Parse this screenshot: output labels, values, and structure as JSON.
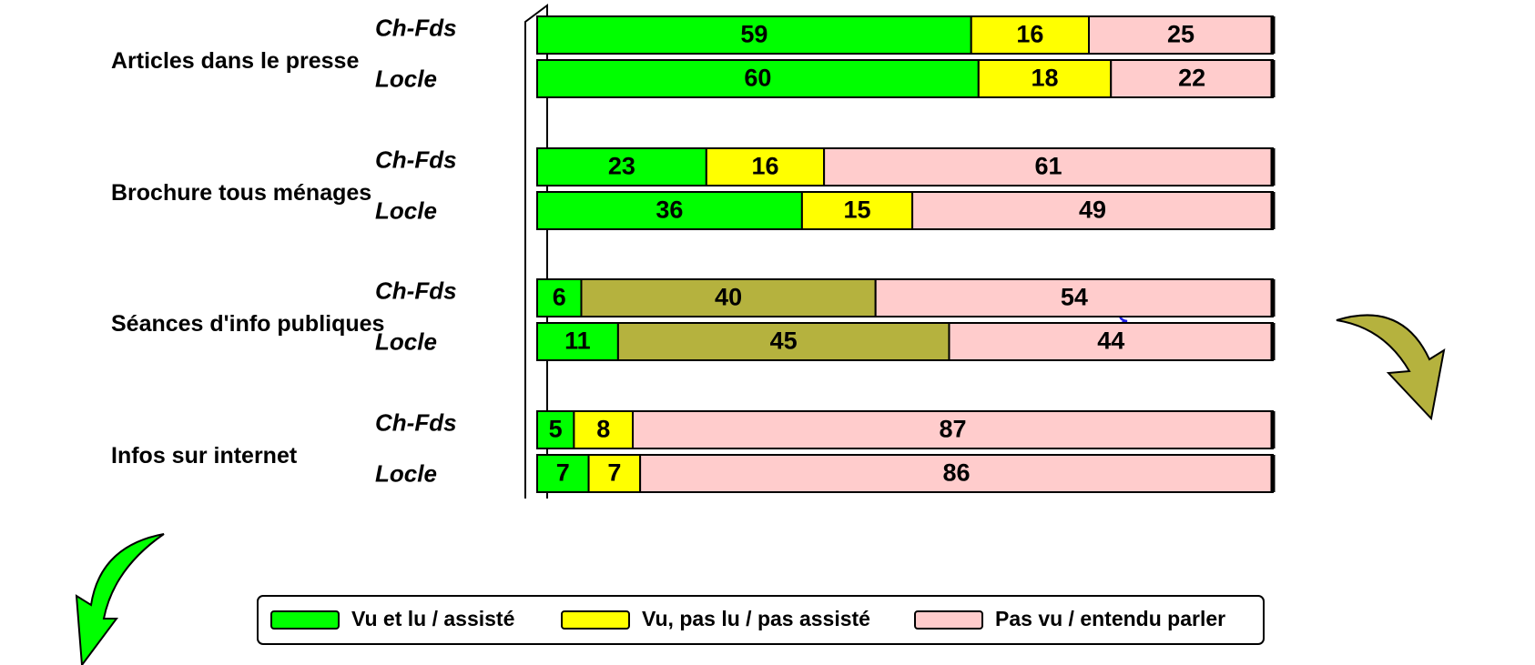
{
  "chart_data": {
    "type": "bar",
    "orientation": "horizontal",
    "stacked": true,
    "xlim": [
      0,
      100
    ],
    "series": [
      {
        "name": "Vu et lu / assisté",
        "color": "#00ff00"
      },
      {
        "name": "Vu, pas lu / pas assisté",
        "color": "#ffff00"
      },
      {
        "name": "Pas vu / entendu parler",
        "color": "#ffcccc"
      }
    ],
    "groups": [
      {
        "label": "Articles dans le presse",
        "bars": [
          {
            "name": "Ch-Fds",
            "values": [
              59,
              16,
              25
            ]
          },
          {
            "name": "Locle",
            "values": [
              60,
              18,
              22
            ]
          }
        ]
      },
      {
        "label": "Brochure tous ménages",
        "bars": [
          {
            "name": "Ch-Fds",
            "values": [
              23,
              16,
              61
            ]
          },
          {
            "name": "Locle",
            "values": [
              36,
              15,
              49
            ]
          }
        ]
      },
      {
        "label": "Séances d'info publiques",
        "label_color": "#1e1ee6",
        "colors": [
          "#00ff00",
          "#b5b23e",
          "#ffcccc"
        ],
        "bars": [
          {
            "name": "Ch-Fds",
            "values": [
              6,
              40,
              54
            ]
          },
          {
            "name": "Locle",
            "values": [
              11,
              45,
              44
            ]
          }
        ]
      },
      {
        "label": "Infos sur internet",
        "bars": [
          {
            "name": "Ch-Fds",
            "values": [
              5,
              8,
              87
            ]
          },
          {
            "name": "Locle",
            "values": [
              7,
              7,
              86
            ]
          }
        ]
      }
    ]
  }
}
